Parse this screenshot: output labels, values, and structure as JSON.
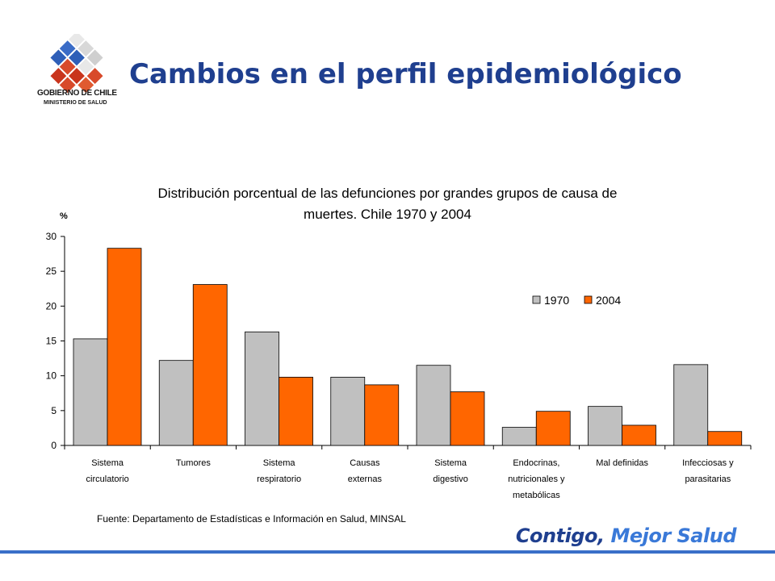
{
  "header": {
    "title": "Cambios en el perfil epidemiológico",
    "logo_line1": "GOBIERNO DE CHILE",
    "logo_line2": "MINISTERIO DE SALUD"
  },
  "chart_data": {
    "type": "bar",
    "title_line1": "Distribución porcentual de las defunciones por grandes grupos de causa de",
    "title_line2": "muertes. Chile  1970  y 2004",
    "ylabel": "%",
    "ylim": [
      0,
      30
    ],
    "yticks": [
      0,
      5,
      10,
      15,
      20,
      25,
      30
    ],
    "categories": [
      [
        "Sistema",
        "circulatorio"
      ],
      [
        "Tumores"
      ],
      [
        "Sistema",
        "respiratorio"
      ],
      [
        "Causas",
        "externas"
      ],
      [
        "Sistema",
        "digestivo"
      ],
      [
        "Endocrinas,",
        "nutricionales y",
        "metabólicas"
      ],
      [
        "Mal definidas"
      ],
      [
        "Infecciosas y",
        "parasitarias"
      ]
    ],
    "series": [
      {
        "name": "1970",
        "color": "#c0c0c0",
        "values": [
          15.3,
          12.2,
          16.3,
          9.8,
          11.5,
          2.6,
          5.6,
          11.6
        ]
      },
      {
        "name": "2004",
        "color": "#ff6600",
        "values": [
          28.3,
          23.1,
          9.8,
          8.7,
          7.7,
          4.9,
          2.9,
          2.0
        ]
      }
    ],
    "legend_position": "top-right",
    "grid": false
  },
  "source": "Fuente: Departamento de Estadísticas e Información en Salud, MINSAL",
  "footer": {
    "slogan_part1": "Contigo,",
    "slogan_part2": "Mejor Salud"
  }
}
